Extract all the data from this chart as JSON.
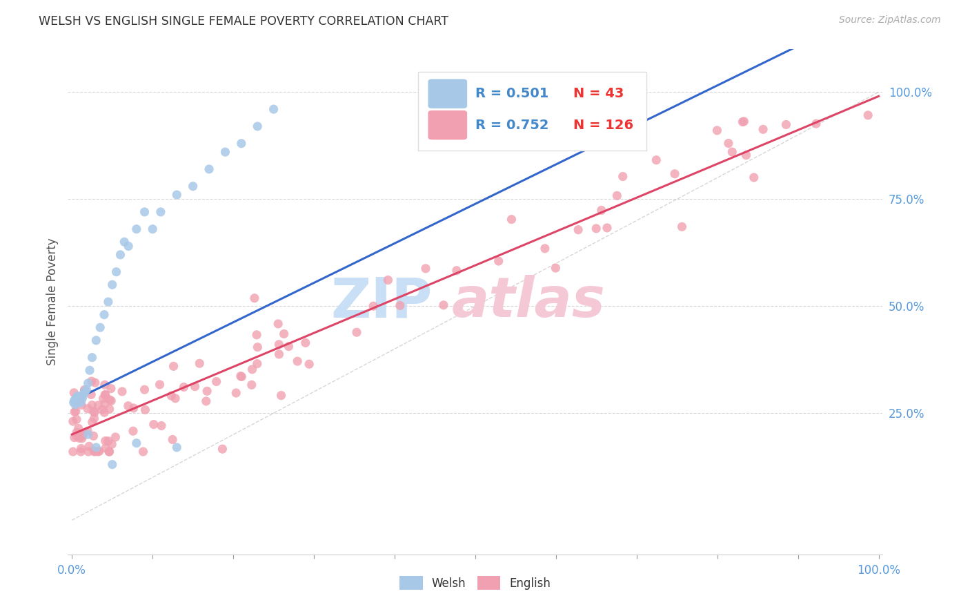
{
  "title": "WELSH VS ENGLISH SINGLE FEMALE POVERTY CORRELATION CHART",
  "source": "Source: ZipAtlas.com",
  "ylabel": "Single Female Poverty",
  "xlabel_welsh": "Welsh",
  "xlabel_english": "English",
  "welsh_R": 0.501,
  "welsh_N": 43,
  "english_R": 0.752,
  "english_N": 126,
  "welsh_color": "#a8c8e8",
  "english_color": "#f0a0b0",
  "welsh_line_color": "#3366cc",
  "english_line_color": "#dd4466",
  "title_color": "#333333",
  "source_color": "#aaaaaa",
  "axis_label_color": "#555555",
  "tick_color": "#5599dd",
  "legend_r_color": "#4488cc",
  "legend_n_color": "#ee3333",
  "background_color": "#ffffff",
  "grid_color": "#cccccc",
  "watermark_zip_color": "#c8dff5",
  "watermark_atlas_color": "#f5c8d5"
}
